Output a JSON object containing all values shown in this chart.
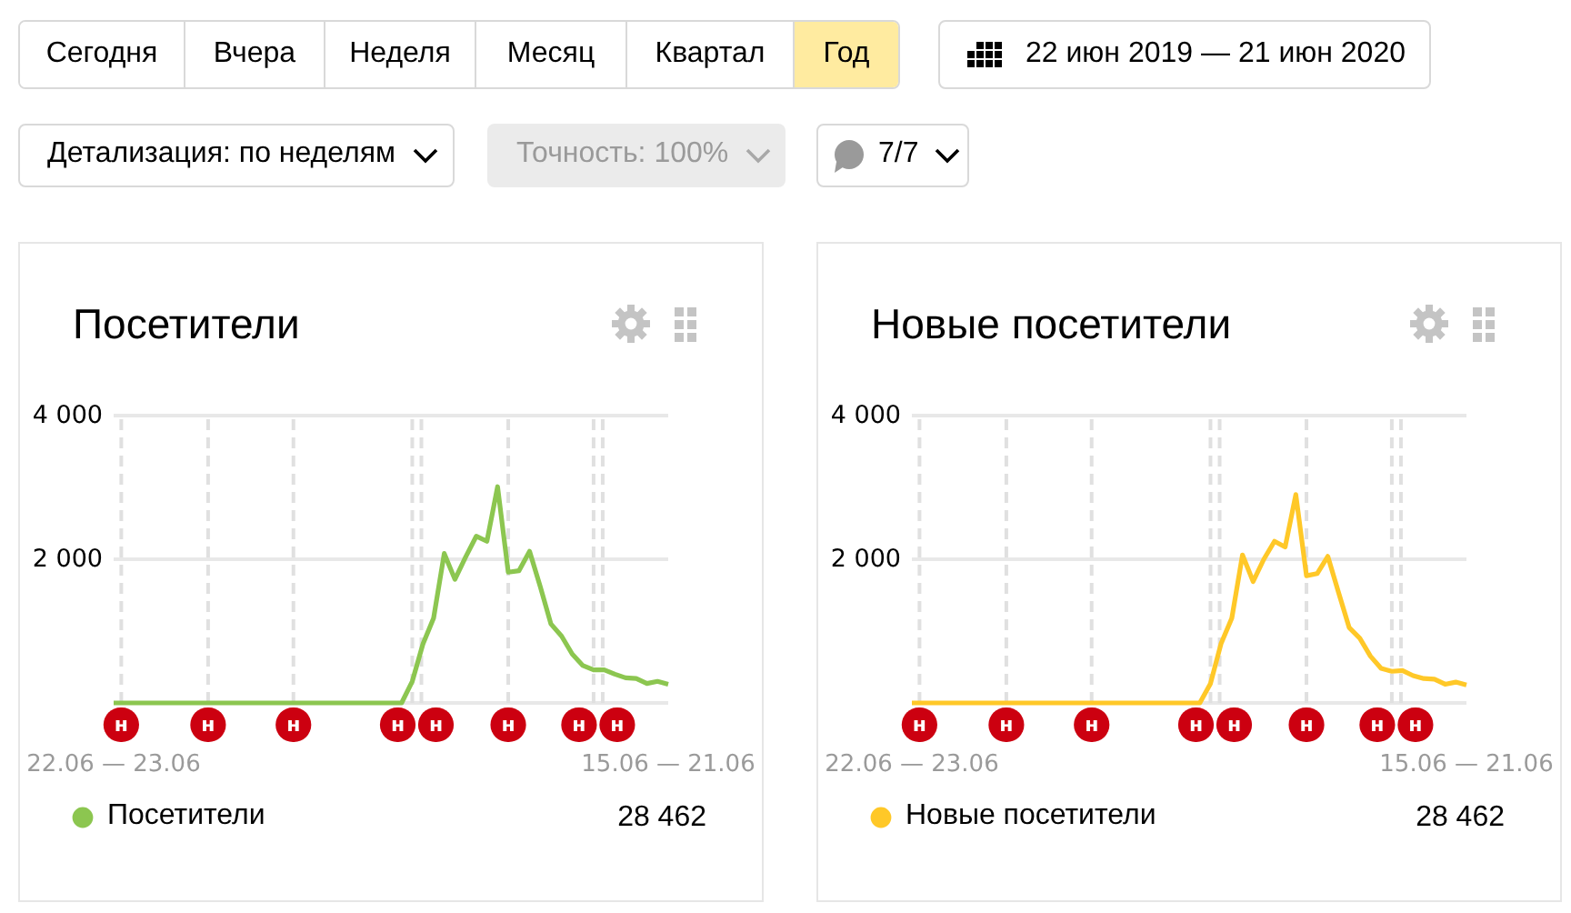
{
  "chart_data": [
    {
      "type": "other",
      "annotations": [
        "Сегодня",
        "Вчера",
        "Неделя",
        "Месяц",
        "Квартал",
        "Год",
        "22 июн 2019 — 21 июн 2020",
        "Детализация: по неделям",
        "Точность: 100%",
        "7/7"
      ]
    },
    {
      "type": "line",
      "title": "Посетители",
      "x": [
        "2019-06-23",
        "2019-06-30",
        "2019-07-07",
        "2019-07-14",
        "2019-07-21",
        "2019-07-28",
        "2019-08-04",
        "2019-08-11",
        "2019-08-18",
        "2019-08-25",
        "2019-09-01",
        "2019-09-08",
        "2019-09-15",
        "2019-09-22",
        "2019-09-29",
        "2019-10-06",
        "2019-10-13",
        "2019-10-20",
        "2019-10-27",
        "2019-11-03",
        "2019-11-10",
        "2019-11-17",
        "2019-11-24",
        "2019-12-01",
        "2019-12-08",
        "2019-12-15",
        "2019-12-22",
        "2019-12-29",
        "2020-01-05",
        "2020-01-12",
        "2020-01-19",
        "2020-01-26",
        "2020-02-02",
        "2020-02-09",
        "2020-02-16",
        "2020-02-23",
        "2020-03-01",
        "2020-03-08",
        "2020-03-15",
        "2020-03-22",
        "2020-03-29",
        "2020-04-05",
        "2020-04-12",
        "2020-04-19",
        "2020-04-26",
        "2020-05-03",
        "2020-05-10",
        "2020-05-17",
        "2020-05-24",
        "2020-05-31",
        "2020-06-07",
        "2020-06-14",
        "2020-06-21"
      ],
      "xlim": [
        "2019-06-23",
        "2020-06-21"
      ],
      "xticks": [
        {
          "value": "2019-06-23",
          "label": "22.06 — 23.06"
        },
        {
          "value": "2020-06-21",
          "label": "15.06 — 21.06"
        }
      ],
      "ylim": [
        0,
        4000
      ],
      "yticks": [
        {
          "value": 0,
          "label": null
        },
        {
          "value": 2000,
          "label": "2 000"
        },
        {
          "value": 4000,
          "label": "4 000"
        }
      ],
      "grid": "y",
      "legend": "bottom",
      "series": [
        {
          "name": "Посетители",
          "color": "#8cc650",
          "values": [
            0,
            0,
            0,
            0,
            0,
            0,
            0,
            0,
            0,
            0,
            0,
            0,
            0,
            0,
            0,
            0,
            0,
            0,
            0,
            0,
            0,
            0,
            0,
            0,
            0,
            0,
            0,
            0,
            300,
            820,
            1180,
            2080,
            1720,
            2030,
            2320,
            2250,
            3010,
            1820,
            1840,
            2110,
            1620,
            1100,
            930,
            680,
            520,
            460,
            460,
            400,
            350,
            340,
            270,
            300,
            260
          ]
        }
      ],
      "ref_lines": [
        {
          "axis": "x",
          "value": "2019-06-28",
          "label": "н",
          "color": "#e0e0e0",
          "line_style": "dashed"
        },
        {
          "axis": "x",
          "value": "2019-08-24",
          "label": "н",
          "color": "#e0e0e0",
          "line_style": "dashed"
        },
        {
          "axis": "x",
          "value": "2019-10-19",
          "label": "н",
          "color": "#e0e0e0",
          "line_style": "dashed"
        },
        {
          "axis": "x",
          "value": "2020-01-05",
          "label": "н",
          "color": "#e0e0e0",
          "line_style": "dashed"
        },
        {
          "axis": "x",
          "value": "2020-01-11",
          "label": "н",
          "color": "#e0e0e0",
          "line_style": "dashed"
        },
        {
          "axis": "x",
          "value": "2020-03-08",
          "label": "н",
          "color": "#e0e0e0",
          "line_style": "dashed"
        },
        {
          "axis": "x",
          "value": "2020-05-03",
          "label": "н",
          "color": "#e0e0e0",
          "line_style": "dashed"
        },
        {
          "axis": "x",
          "value": "2020-05-09",
          "label": "н",
          "color": "#e0e0e0",
          "line_style": "dashed"
        }
      ],
      "annotations": [
        "28 462"
      ]
    },
    {
      "type": "line",
      "title": "Новые посетители",
      "x": [
        "2019-06-23",
        "2019-06-30",
        "2019-07-07",
        "2019-07-14",
        "2019-07-21",
        "2019-07-28",
        "2019-08-04",
        "2019-08-11",
        "2019-08-18",
        "2019-08-25",
        "2019-09-01",
        "2019-09-08",
        "2019-09-15",
        "2019-09-22",
        "2019-09-29",
        "2019-10-06",
        "2019-10-13",
        "2019-10-20",
        "2019-10-27",
        "2019-11-03",
        "2019-11-10",
        "2019-11-17",
        "2019-11-24",
        "2019-12-01",
        "2019-12-08",
        "2019-12-15",
        "2019-12-22",
        "2019-12-29",
        "2020-01-05",
        "2020-01-12",
        "2020-01-19",
        "2020-01-26",
        "2020-02-02",
        "2020-02-09",
        "2020-02-16",
        "2020-02-23",
        "2020-03-01",
        "2020-03-08",
        "2020-03-15",
        "2020-03-22",
        "2020-03-29",
        "2020-04-05",
        "2020-04-12",
        "2020-04-19",
        "2020-04-26",
        "2020-05-03",
        "2020-05-10",
        "2020-05-17",
        "2020-05-24",
        "2020-05-31",
        "2020-06-07",
        "2020-06-14",
        "2020-06-21"
      ],
      "xlim": [
        "2019-06-23",
        "2020-06-21"
      ],
      "xticks": [
        {
          "value": "2019-06-23",
          "label": "22.06 — 23.06"
        },
        {
          "value": "2020-06-21",
          "label": "15.06 — 21.06"
        }
      ],
      "ylim": [
        0,
        4000
      ],
      "yticks": [
        {
          "value": 0,
          "label": null
        },
        {
          "value": 2000,
          "label": "2 000"
        },
        {
          "value": 4000,
          "label": "4 000"
        }
      ],
      "grid": "y",
      "legend": "bottom",
      "series": [
        {
          "name": "Новые посетители",
          "color": "#ffc828",
          "values": [
            0,
            0,
            0,
            0,
            0,
            0,
            0,
            0,
            0,
            0,
            0,
            0,
            0,
            0,
            0,
            0,
            0,
            0,
            0,
            0,
            0,
            0,
            0,
            0,
            0,
            0,
            0,
            0,
            270,
            830,
            1180,
            2060,
            1690,
            2000,
            2250,
            2170,
            2900,
            1770,
            1800,
            2040,
            1540,
            1050,
            900,
            650,
            480,
            440,
            450,
            380,
            340,
            330,
            260,
            290,
            250
          ]
        }
      ],
      "ref_lines": [
        {
          "axis": "x",
          "value": "2019-06-28",
          "label": "н",
          "color": "#e0e0e0",
          "line_style": "dashed"
        },
        {
          "axis": "x",
          "value": "2019-08-24",
          "label": "н",
          "color": "#e0e0e0",
          "line_style": "dashed"
        },
        {
          "axis": "x",
          "value": "2019-10-19",
          "label": "н",
          "color": "#e0e0e0",
          "line_style": "dashed"
        },
        {
          "axis": "x",
          "value": "2020-01-05",
          "label": "н",
          "color": "#e0e0e0",
          "line_style": "dashed"
        },
        {
          "axis": "x",
          "value": "2020-01-11",
          "label": "н",
          "color": "#e0e0e0",
          "line_style": "dashed"
        },
        {
          "axis": "x",
          "value": "2020-03-08",
          "label": "н",
          "color": "#e0e0e0",
          "line_style": "dashed"
        },
        {
          "axis": "x",
          "value": "2020-05-03",
          "label": "н",
          "color": "#e0e0e0",
          "line_style": "dashed"
        },
        {
          "axis": "x",
          "value": "2020-05-09",
          "label": "н",
          "color": "#e0e0e0",
          "line_style": "dashed"
        }
      ],
      "annotations": [
        "28 462"
      ]
    }
  ]
}
